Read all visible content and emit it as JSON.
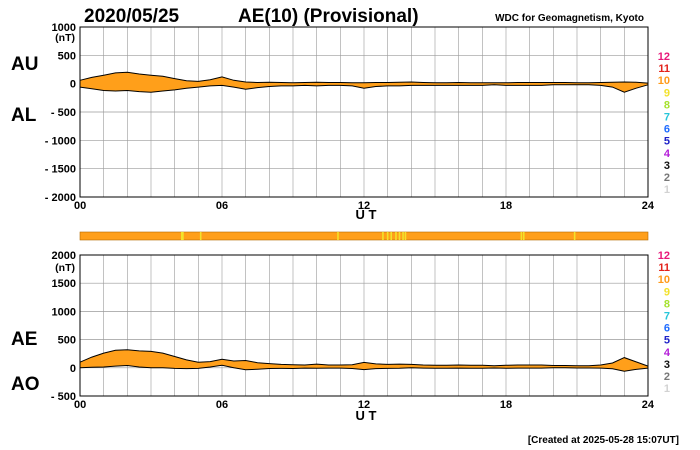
{
  "header": {
    "date": "2020/05/25",
    "title": "AE(10) (Provisional)",
    "credit": "WDC for Geomagnetism, Kyoto"
  },
  "footer": {
    "created": "[Created at 2025-05-28 15:07UT]"
  },
  "colors": {
    "fill": "#ff9f1a",
    "line": "#000000",
    "grid": "#9a9a9a",
    "bar": "#ff9f1a",
    "bar_marks": "#f2e22a"
  },
  "station_legend": [
    {
      "label": "12",
      "color": "#e8177a"
    },
    {
      "label": "11",
      "color": "#e3231b"
    },
    {
      "label": "10",
      "color": "#ff9a1a"
    },
    {
      "label": "9",
      "color": "#f2e12a"
    },
    {
      "label": "8",
      "color": "#a6e22e"
    },
    {
      "label": "7",
      "color": "#27c6d9"
    },
    {
      "label": "6",
      "color": "#1e6bff"
    },
    {
      "label": "5",
      "color": "#1e22c8"
    },
    {
      "label": "4",
      "color": "#b41ed9"
    },
    {
      "label": "3",
      "color": "#111111"
    },
    {
      "label": "2",
      "color": "#777777"
    },
    {
      "label": "1",
      "color": "#d2d2d2"
    }
  ],
  "station_bar": {
    "marks_ut_hours": [
      4.3,
      4.35,
      5.1,
      10.9,
      12.8,
      13.0,
      13.15,
      13.35,
      13.5,
      13.65,
      13.75,
      18.65,
      18.75,
      20.9
    ]
  },
  "chart_data": [
    {
      "type": "area",
      "id": "au_al",
      "upper_label": "AU",
      "lower_label": "AL",
      "units": "(nT)",
      "xlabel": "U T",
      "xlim": [
        0,
        24
      ],
      "ylim": [
        -2000,
        1000
      ],
      "x_ticks": [
        0,
        6,
        12,
        18,
        24
      ],
      "x_tick_labels": [
        "00",
        "06",
        "12",
        "18",
        "24"
      ],
      "y_ticks": [
        1000,
        500,
        0,
        -500,
        -1000,
        -1500,
        -2000
      ],
      "y_tick_labels": [
        "1000",
        "500",
        "0",
        "- 500",
        "- 1000",
        "- 1500",
        "- 2000"
      ],
      "grid": true,
      "x": [
        0,
        0.5,
        1,
        1.5,
        2,
        2.5,
        3,
        3.5,
        4,
        4.5,
        5,
        5.5,
        6,
        6.5,
        7,
        7.5,
        8,
        8.5,
        9,
        9.5,
        10,
        10.5,
        11,
        11.5,
        12,
        12.5,
        13,
        13.5,
        14,
        14.5,
        15,
        15.5,
        16,
        16.5,
        17,
        17.5,
        18,
        18.5,
        19,
        19.5,
        20,
        20.5,
        21,
        21.5,
        22,
        22.5,
        23,
        23.5,
        24
      ],
      "series": [
        {
          "name": "AU",
          "values": [
            60,
            110,
            150,
            190,
            200,
            170,
            150,
            130,
            90,
            50,
            40,
            70,
            120,
            60,
            30,
            20,
            25,
            20,
            15,
            20,
            25,
            20,
            20,
            15,
            15,
            20,
            20,
            25,
            30,
            20,
            15,
            15,
            20,
            15,
            15,
            15,
            15,
            20,
            20,
            20,
            20,
            20,
            15,
            15,
            20,
            25,
            30,
            25,
            10
          ]
        },
        {
          "name": "AL",
          "values": [
            -60,
            -90,
            -120,
            -130,
            -120,
            -140,
            -150,
            -130,
            -110,
            -80,
            -60,
            -40,
            -30,
            -60,
            -100,
            -70,
            -50,
            -40,
            -40,
            -30,
            -40,
            -30,
            -30,
            -40,
            -80,
            -50,
            -40,
            -40,
            -30,
            -30,
            -30,
            -30,
            -30,
            -30,
            -30,
            -20,
            -30,
            -30,
            -30,
            -30,
            -20,
            -20,
            -20,
            -20,
            -30,
            -60,
            -150,
            -80,
            -20
          ]
        }
      ]
    },
    {
      "type": "area",
      "id": "ae_ao",
      "upper_label": "AE",
      "lower_label": "AO",
      "units": "(nT)",
      "xlabel": "U T",
      "xlim": [
        0,
        24
      ],
      "ylim": [
        -500,
        2000
      ],
      "x_ticks": [
        0,
        6,
        12,
        18,
        24
      ],
      "x_tick_labels": [
        "00",
        "06",
        "12",
        "18",
        "24"
      ],
      "y_ticks": [
        2000,
        1500,
        1000,
        500,
        0,
        -500
      ],
      "y_tick_labels": [
        "2000",
        "1500",
        "1000",
        "500",
        "0",
        "- 500"
      ],
      "grid": true,
      "x": [
        0,
        0.5,
        1,
        1.5,
        2,
        2.5,
        3,
        3.5,
        4,
        4.5,
        5,
        5.5,
        6,
        6.5,
        7,
        7.5,
        8,
        8.5,
        9,
        9.5,
        10,
        10.5,
        11,
        11.5,
        12,
        12.5,
        13,
        13.5,
        14,
        14.5,
        15,
        15.5,
        16,
        16.5,
        17,
        17.5,
        18,
        18.5,
        19,
        19.5,
        20,
        20.5,
        21,
        21.5,
        22,
        22.5,
        23,
        23.5,
        24
      ],
      "series": [
        {
          "name": "AE",
          "values": [
            100,
            190,
            260,
            310,
            320,
            300,
            290,
            260,
            200,
            140,
            100,
            110,
            150,
            120,
            130,
            90,
            75,
            60,
            55,
            50,
            65,
            50,
            50,
            55,
            95,
            70,
            60,
            65,
            60,
            50,
            45,
            45,
            50,
            45,
            45,
            35,
            45,
            50,
            50,
            50,
            40,
            40,
            35,
            35,
            50,
            85,
            180,
            105,
            30
          ]
        },
        {
          "name": "AO",
          "values": [
            0,
            10,
            15,
            30,
            40,
            15,
            0,
            0,
            -10,
            -15,
            -10,
            15,
            45,
            0,
            -35,
            -25,
            -12,
            -10,
            -12,
            -5,
            -8,
            -5,
            -5,
            -12,
            -32,
            -15,
            -10,
            -8,
            0,
            -5,
            -8,
            -8,
            -5,
            -8,
            -8,
            -3,
            -8,
            -5,
            -5,
            -5,
            0,
            0,
            -3,
            -3,
            -5,
            -18,
            -60,
            -28,
            -5
          ]
        }
      ]
    }
  ]
}
